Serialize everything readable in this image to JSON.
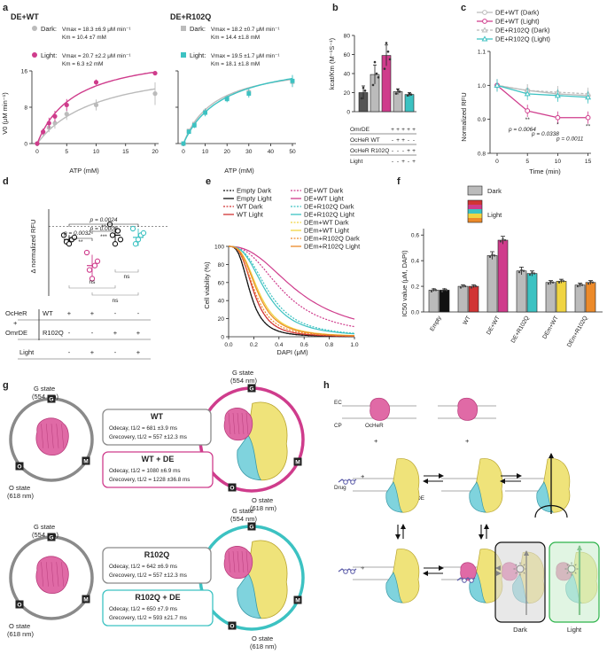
{
  "panels": {
    "a": "a",
    "b": "b",
    "c": "c",
    "d": "d",
    "e": "e",
    "f": "f",
    "g": "g",
    "h": "h"
  },
  "colors": {
    "dark": "#bbbbbb",
    "wt_light": "#cf3c8c",
    "r102q_light": "#3cc2c2",
    "black": "#111111",
    "gray_dark": "#8a8a8a",
    "wt": "#d13434",
    "yellow": "#f0d442",
    "orange": "#ec8a2a",
    "cyan_light": "#c8eeee",
    "green": "#2db34a"
  },
  "panel_a": {
    "left_title": "DE+WT",
    "left_dark_label": "Dark:",
    "left_dark_vmax": "Vmax = 18.3 ±6.9 μM min⁻¹",
    "left_dark_km": "Km = 10.4 ±7 mM",
    "left_light_label": "Light:",
    "left_light_vmax": "Vmax = 20.7 ±2.2 μM min⁻¹",
    "left_light_km": "Km = 6.3 ±2 mM",
    "right_title": "DE+R102Q",
    "right_dark_label": "Dark:",
    "right_dark_vmax": "Vmax = 18.2 ±0.7 μM min⁻¹",
    "right_dark_km": "Km = 14.4 ±1.8 mM",
    "right_light_label": "Light:",
    "right_light_vmax": "Vmax = 19.5 ±1.7 μM min⁻¹",
    "right_light_km": "Km = 18.1 ±1.8 mM",
    "ylabel": "V0 (μM min⁻¹)",
    "xlabel_left": "ATP (mM)",
    "xlabel_right": "ATP (mM)"
  },
  "panel_b": {
    "ylabel": "kcat/Km (M⁻¹S⁻¹)",
    "row_labels": [
      "OmrDE",
      "OcHeR WT",
      "OcHeR R102Q",
      "Light"
    ],
    "signs": [
      [
        "+",
        "+",
        "+",
        "+",
        "+"
      ],
      [
        "-",
        "+",
        "+",
        "-",
        "-"
      ],
      [
        "-",
        "-",
        "-",
        "+",
        "+"
      ],
      [
        "-",
        "-",
        "+",
        "-",
        "+"
      ]
    ]
  },
  "panel_c": {
    "legend": [
      "DE+WT (Dark)",
      "DE+WT (Light)",
      "DE+R102Q (Dark)",
      "DE+R102Q (Light)"
    ],
    "xlabel": "Time (min)",
    "ylabel": "Normalized RFU",
    "stars": [
      "**",
      "*",
      "**"
    ],
    "pvals": [
      "p = 0.0064",
      "p = 0.0338",
      "p = 0.0011"
    ]
  },
  "panel_d": {
    "ylabel": "Δ normalized RFU",
    "pvals": [
      "p = 0.0024",
      "p = 0.0009",
      "p = 0.0032"
    ],
    "stars": [
      "**",
      "***",
      "**"
    ],
    "ns": [
      "ns",
      "ns",
      "ns"
    ],
    "cond_a": "OcHeR",
    "cond_b": "+",
    "cond_c": "OmrDE",
    "row1_label": "WT",
    "row2_label": "R102Q",
    "row3_label": "Light",
    "signs": [
      [
        "+",
        "+",
        "-",
        "-"
      ],
      [
        "-",
        "-",
        "+",
        "+"
      ],
      [
        "-",
        "+",
        "-",
        "+"
      ]
    ]
  },
  "panel_e": {
    "legend_left": [
      "Empty Dark",
      "Empty Light",
      "WT Dark",
      "WT Light"
    ],
    "legend_right": [
      "DE+WT Dark",
      "DE+WT Light",
      "DE+R102Q Dark",
      "DE+R102Q Light",
      "DEm+WT Dark",
      "DEm+WT Light",
      "DEm+R102Q Dark",
      "DEm+R102Q Light"
    ],
    "xlabel": "DAPI (μM)",
    "ylabel": "Cell viability (%)"
  },
  "panel_f": {
    "legend_dark": "Dark",
    "legend_light": "Light",
    "ylabel": "IC50 value (μM, DAPI)",
    "categories": [
      "Empty",
      "WT",
      "DE+WT",
      "DE+R102Q",
      "DEm+WT",
      "DEm+R102Q"
    ]
  },
  "panel_g": {
    "g_state": "G state",
    "g_nm": "(554 nm)",
    "o_state": "O state",
    "o_nm": "(618 nm)",
    "g_letter": "G",
    "m_letter": "M",
    "o_letter": "O",
    "box1_title": "WT",
    "box1_l1": "Odecay, t1/2 = 681 ±3.9 ms",
    "box1_l2": "Grecovery, t1/2 = 557 ±12.3 ms",
    "box2_title": "WT + DE",
    "box2_l1": "Odecay, t1/2 = 1080 ±6.9 ms",
    "box2_l2": "Grecovery, t1/2 = 1228 ±36.8 ms",
    "box3_title": "R102Q",
    "box3_l1": "Odecay, t1/2 = 642 ±6.9 ms",
    "box3_l2": "Grecovery, t1/2 = 557 ±12.3 ms",
    "box4_title": "R102Q + DE",
    "box4_l1": "Odecay, t1/2 = 650 ±7.9 ms",
    "box4_l2": "Grecovery, t1/2 = 593 ±21.7 ms"
  },
  "panel_h": {
    "ec": "EC",
    "cp": "CP",
    "ocher": "OcHeR",
    "omrde": "OmrDE",
    "drug": "Drug",
    "dark": "Dark",
    "light": "Light",
    "plus": "+"
  },
  "chart_data": [
    {
      "panel": "a-left",
      "type": "scatter",
      "title": "DE+WT",
      "xlabel": "ATP (mM)",
      "ylabel": "V0 (μM min⁻¹)",
      "xlim": [
        0,
        20
      ],
      "ylim": [
        0,
        16
      ],
      "x": [
        0,
        1,
        2,
        3,
        5,
        10,
        20
      ],
      "series": [
        {
          "name": "Dark",
          "values": [
            0,
            2.5,
            3.5,
            4.5,
            6.5,
            8.5,
            11
          ],
          "err": [
            0.3,
            0.8,
            1.0,
            1.2,
            1.3,
            1.2,
            2.5
          ],
          "vmax": 18.3,
          "km": 10.4
        },
        {
          "name": "Light",
          "values": [
            0,
            2.6,
            4.5,
            6.0,
            8.5,
            13.5,
            15.5
          ],
          "err": [
            0.3,
            0.7,
            1.2,
            1.2,
            1.3,
            0.6,
            0.5
          ],
          "vmax": 20.7,
          "km": 6.3
        }
      ]
    },
    {
      "panel": "a-right",
      "type": "scatter",
      "title": "DE+R102Q",
      "xlabel": "ATP (mM)",
      "ylabel": "",
      "xlim": [
        0,
        50
      ],
      "ylim": [
        0,
        16
      ],
      "x": [
        0,
        2.5,
        5,
        10,
        20,
        30,
        50
      ],
      "series": [
        {
          "name": "Dark",
          "values": [
            0,
            2.8,
            4.3,
            7.0,
            10.0,
            11.3,
            13.6
          ],
          "err": [
            0.3,
            0.4,
            0.6,
            0.8,
            0.7,
            1.0,
            1.2
          ],
          "vmax": 18.2,
          "km": 14.4
        },
        {
          "name": "Light",
          "values": [
            0,
            2.6,
            4.0,
            6.8,
            9.8,
            11.0,
            13.8
          ],
          "err": [
            0.3,
            0.5,
            0.6,
            0.8,
            0.7,
            0.9,
            1.3
          ],
          "vmax": 19.5,
          "km": 18.1
        }
      ]
    },
    {
      "panel": "b",
      "type": "bar",
      "ylabel": "kcat/Km (M⁻¹S⁻¹)",
      "ylim": [
        0,
        80
      ],
      "categories": [
        "DE",
        "DE+WT",
        "DE+WT Light",
        "DE+R102Q",
        "DE+R102Q Light"
      ],
      "values": [
        20,
        39,
        59,
        21,
        18
      ],
      "err": [
        7,
        10,
        11,
        3,
        2
      ]
    },
    {
      "panel": "c",
      "type": "line",
      "xlabel": "Time (min)",
      "ylabel": "Normalized RFU",
      "xlim": [
        0,
        15
      ],
      "ylim": [
        0.8,
        1.1
      ],
      "x": [
        0,
        5,
        10,
        15
      ],
      "series": [
        {
          "name": "DE+WT (Dark)",
          "values": [
            1.0,
            0.985,
            0.975,
            0.97
          ]
        },
        {
          "name": "DE+WT (Light)",
          "values": [
            1.0,
            0.925,
            0.905,
            0.905
          ]
        },
        {
          "name": "DE+R102Q (Dark)",
          "values": [
            1.0,
            0.985,
            0.98,
            0.975
          ]
        },
        {
          "name": "DE+R102Q (Light)",
          "values": [
            1.0,
            0.975,
            0.97,
            0.965
          ]
        }
      ]
    },
    {
      "panel": "d",
      "type": "scatter",
      "ylabel": "Δ normalized RFU",
      "ylim": [
        -0.16,
        0.04
      ],
      "categories": [
        "WT Dark",
        "WT Light",
        "R102Q Dark",
        "R102Q Light"
      ],
      "values": [
        -0.03,
        -0.09,
        -0.02,
        -0.025
      ],
      "err": [
        0.01,
        0.025,
        0.02,
        0.02
      ]
    },
    {
      "panel": "e",
      "type": "line",
      "xlabel": "DAPI (μM)",
      "ylabel": "Cell viability (%)",
      "xlim": [
        0,
        1
      ],
      "ylim": [
        0,
        100
      ],
      "series": [
        {
          "name": "Empty Dark",
          "ic50": 0.17,
          "hill": 3.2
        },
        {
          "name": "Empty Light",
          "ic50": 0.17,
          "hill": 3.2
        },
        {
          "name": "WT Dark",
          "ic50": 0.2,
          "hill": 3.2
        },
        {
          "name": "WT Light",
          "ic50": 0.2,
          "hill": 3.2
        },
        {
          "name": "DE+WT Dark",
          "ic50": 0.44,
          "hill": 2.5
        },
        {
          "name": "DE+WT Light",
          "ic50": 0.56,
          "hill": 2.4
        },
        {
          "name": "DE+R102Q Dark",
          "ic50": 0.32,
          "hill": 2.8
        },
        {
          "name": "DE+R102Q Light",
          "ic50": 0.3,
          "hill": 2.8
        },
        {
          "name": "DEm+WT Dark",
          "ic50": 0.23,
          "hill": 3.0
        },
        {
          "name": "DEm+WT Light",
          "ic50": 0.24,
          "hill": 3.0
        },
        {
          "name": "DEm+R102Q Dark",
          "ic50": 0.21,
          "hill": 3.0
        },
        {
          "name": "DEm+R102Q Light",
          "ic50": 0.23,
          "hill": 3.0
        }
      ]
    },
    {
      "panel": "f",
      "type": "bar",
      "ylabel": "IC50 value (μM, DAPI)",
      "ylim": [
        0,
        0.65
      ],
      "categories": [
        "Empty",
        "WT",
        "DE+WT",
        "DE+R102Q",
        "DEm+WT",
        "DEm+R102Q"
      ],
      "series": [
        {
          "name": "Dark",
          "values": [
            0.17,
            0.2,
            0.44,
            0.32,
            0.23,
            0.21
          ],
          "err": [
            0.01,
            0.01,
            0.03,
            0.03,
            0.015,
            0.015
          ]
        },
        {
          "name": "Light",
          "values": [
            0.17,
            0.2,
            0.56,
            0.3,
            0.24,
            0.23
          ],
          "err": [
            0.01,
            0.01,
            0.03,
            0.02,
            0.015,
            0.015
          ]
        }
      ]
    }
  ]
}
